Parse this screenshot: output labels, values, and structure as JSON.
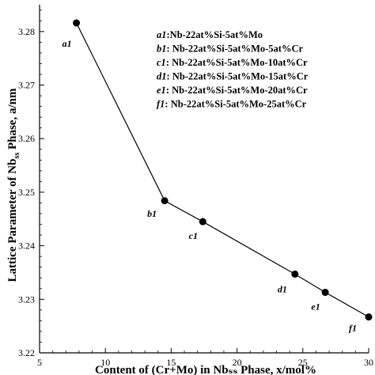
{
  "chart_data": {
    "type": "line",
    "xlabel": "Content of (Cr+Mo) in Nbₛₛ Phase, x/mol%",
    "ylabel_main": "Lattice Parameter of Nb",
    "ylabel_sub": "ss",
    "ylabel_tail": " Phase, a/nm",
    "xlim": [
      5,
      30
    ],
    "ylim": [
      3.22,
      3.285
    ],
    "xticks": [
      5,
      10,
      15,
      20,
      25,
      30
    ],
    "yticks": [
      3.22,
      3.23,
      3.24,
      3.25,
      3.26,
      3.27,
      3.28
    ],
    "ytick_labels": [
      "3.22",
      "3.23",
      "3.24",
      "3.25",
      "3.26",
      "3.27",
      "3.28"
    ],
    "grid": false,
    "legend_position": "top-right",
    "series": [
      {
        "points": [
          {
            "id": "a1",
            "x": 7.8,
            "y": 3.2816
          },
          {
            "id": "b1",
            "x": 14.5,
            "y": 3.2484
          },
          {
            "id": "c1",
            "x": 17.4,
            "y": 3.2445
          },
          {
            "id": "d1",
            "x": 24.4,
            "y": 3.2347
          },
          {
            "id": "e1",
            "x": 26.7,
            "y": 3.2313
          },
          {
            "id": "f1",
            "x": 30.0,
            "y": 3.2267
          }
        ]
      }
    ],
    "legend": [
      {
        "id": "a1",
        "text": ":Nb-22at%Si-5at%Mo"
      },
      {
        "id": "b1",
        "text": ": Nb-22at%Si-5at%Mo-5at%Cr"
      },
      {
        "id": "c1",
        "text": ": Nb-22at%Si-5at%Mo-10at%Cr"
      },
      {
        "id": "d1",
        "text": ": Nb-22at%Si-5at%Mo-15at%Cr"
      },
      {
        "id": "e1",
        "text": ": Nb-22at%Si-5at%Mo-20at%Cr"
      },
      {
        "id": "f1",
        "text": ": Nb-22at%Si-5at%Mo-25at%Cr"
      }
    ]
  },
  "colors": {
    "line": "#000000",
    "marker": "#000000",
    "axis": "#000000",
    "background": "#ffffff"
  }
}
